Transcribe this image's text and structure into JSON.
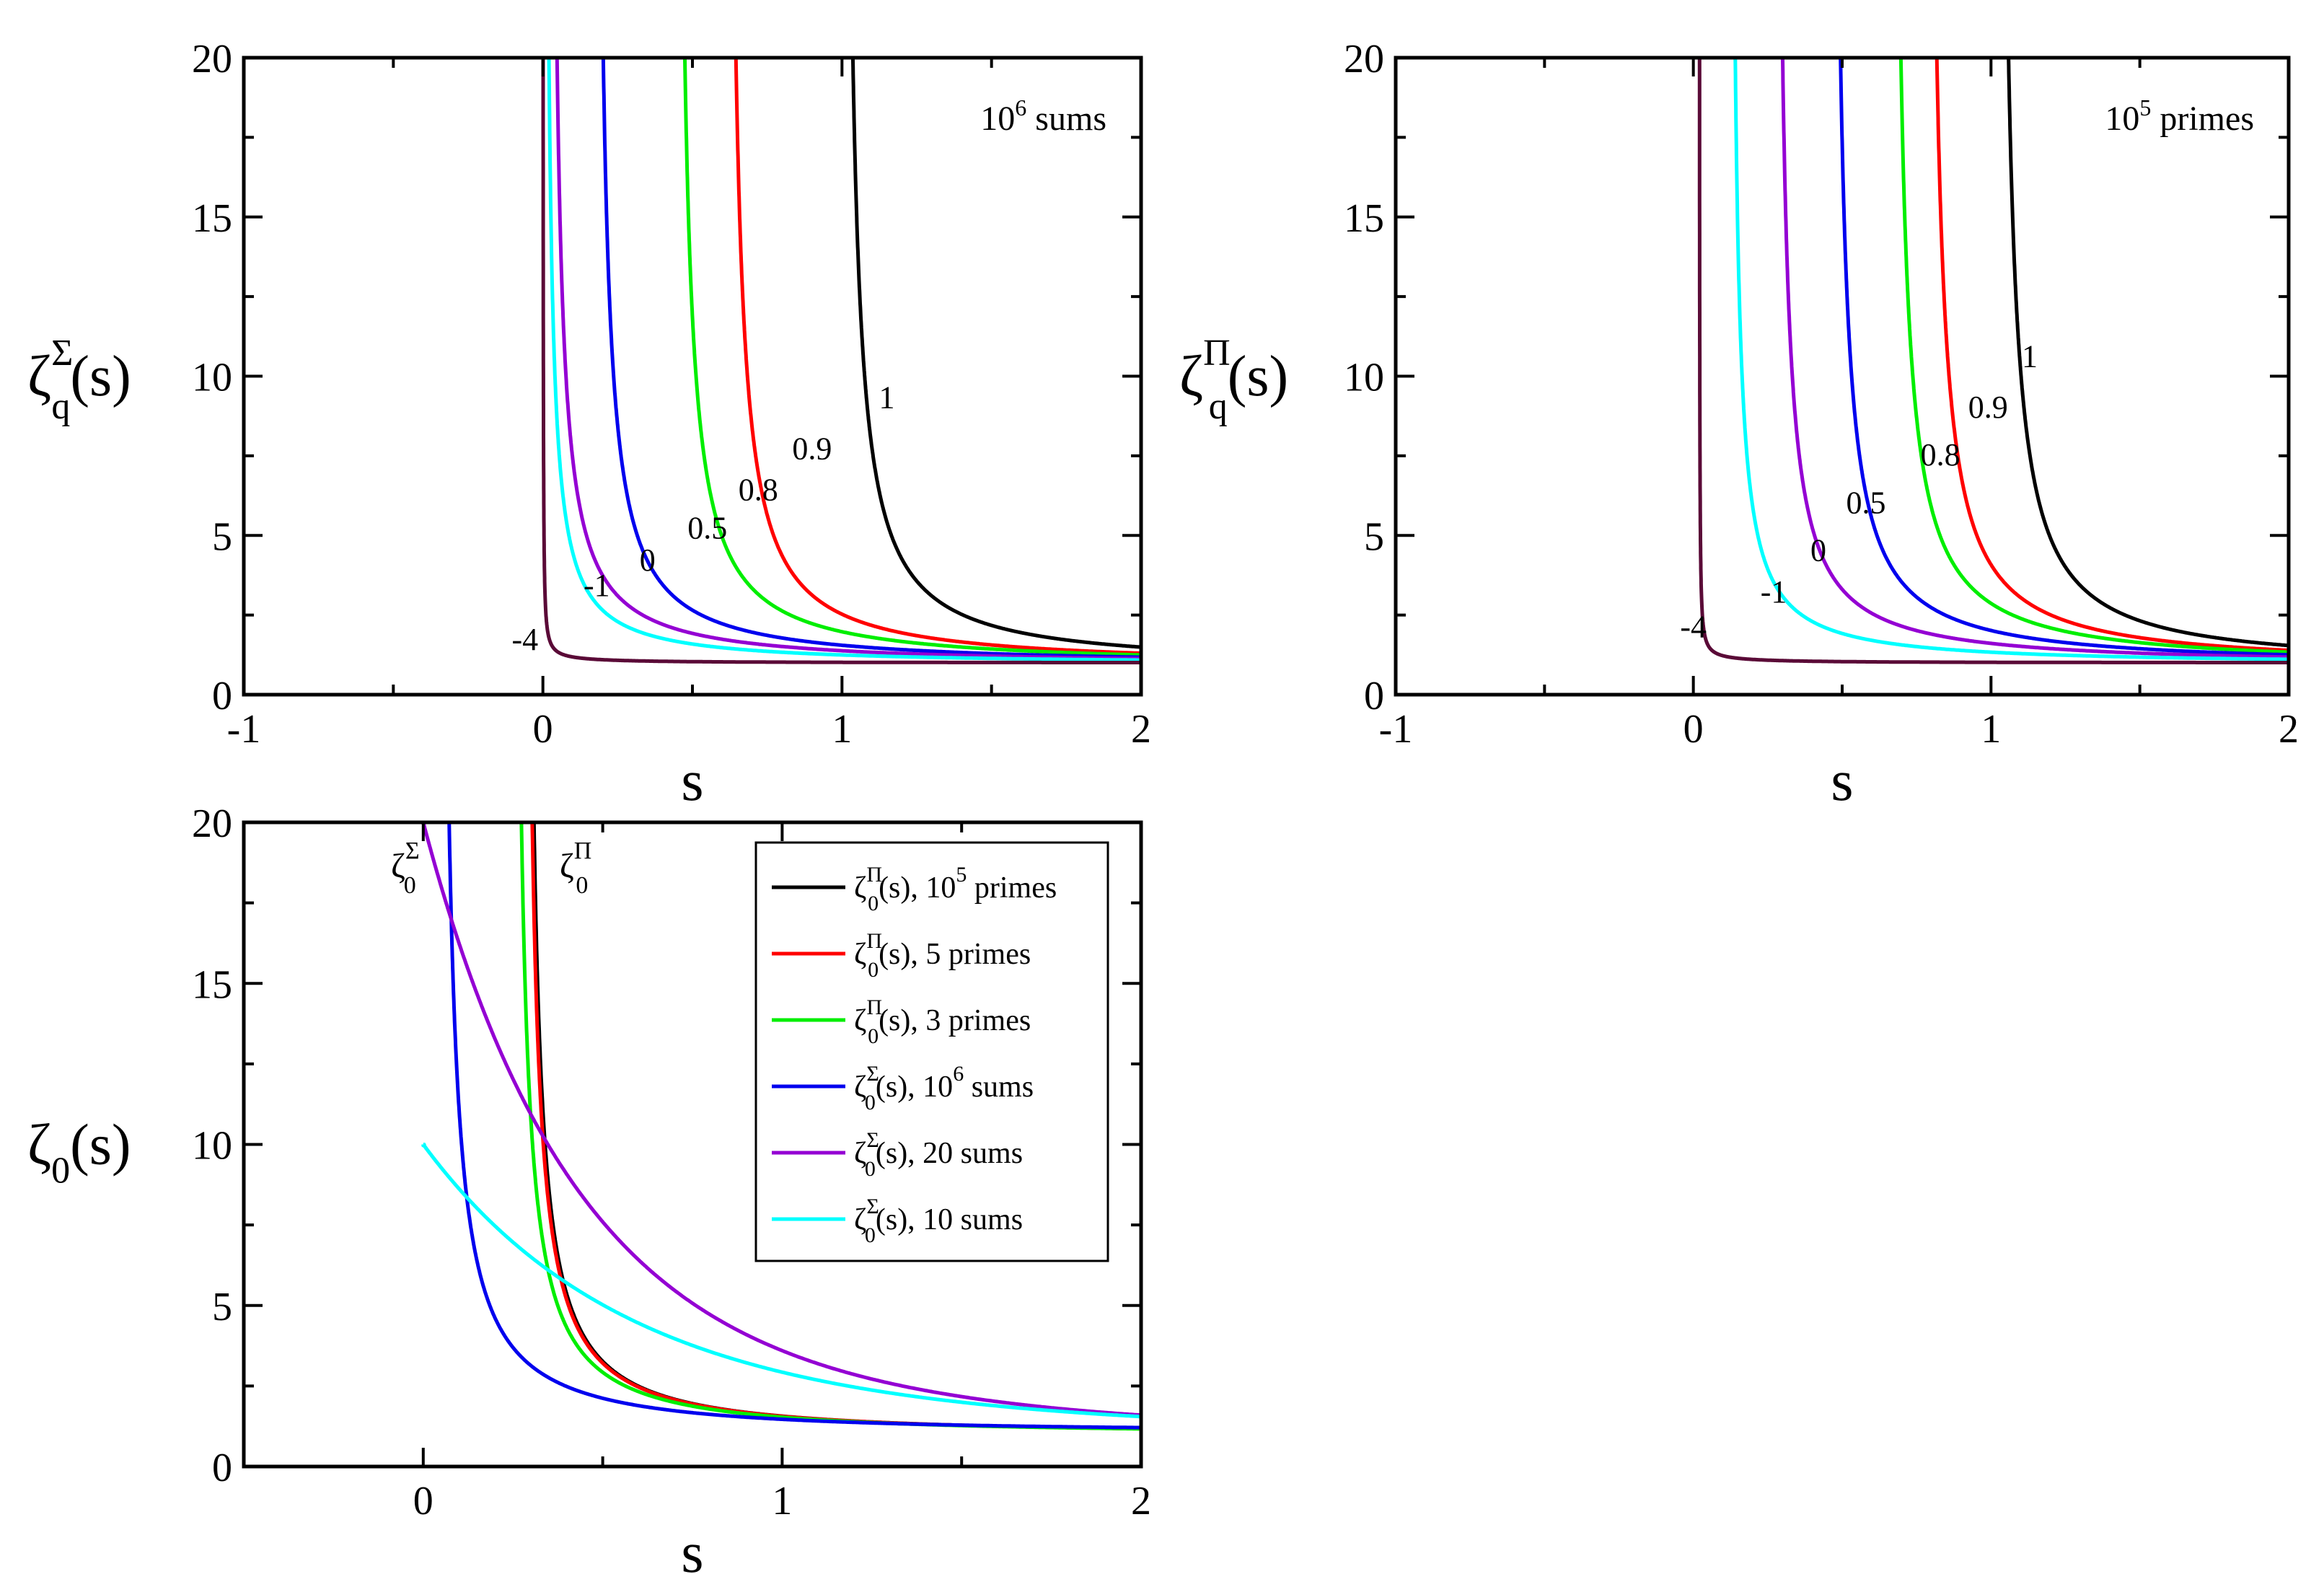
{
  "chart_data": [
    {
      "id": "p1",
      "type": "line",
      "title": "",
      "xlabel": "s",
      "ylabel": {
        "base": "ζ",
        "sub": "q",
        "sup": "Σ",
        "arg": "(s)"
      },
      "annotation": {
        "base": "10",
        "sup": "6",
        "rest": " sums"
      },
      "xlim": [
        -1,
        2
      ],
      "ylim": [
        0,
        20
      ],
      "xticks": [
        -1,
        0,
        1,
        2
      ],
      "yticks": [
        0,
        5,
        10,
        15,
        20
      ],
      "xtick_labels": [
        "-1",
        "0",
        "1",
        "2"
      ],
      "ytick_labels": [
        "0",
        "5",
        "10",
        "15",
        "20"
      ],
      "series": [
        {
          "name": "1",
          "q": 1,
          "color": "#000000",
          "pole": 1.0,
          "label_at": [
            1.15,
            9.0
          ]
        },
        {
          "name": "0.9",
          "q": 0.9,
          "color": "#ff0000",
          "pole": 0.61,
          "label_at": [
            0.9,
            7.4
          ]
        },
        {
          "name": "0.8",
          "q": 0.8,
          "color": "#00ee00",
          "pole": 0.44,
          "label_at": [
            0.72,
            6.1
          ]
        },
        {
          "name": "0.5",
          "q": 0.5,
          "color": "#0000ee",
          "pole": 0.17,
          "label_at": [
            0.55,
            4.9
          ]
        },
        {
          "name": "0",
          "q": 0,
          "color": "#9400d3",
          "pole": 0.02,
          "label_at": [
            0.35,
            3.9
          ]
        },
        {
          "name": "-1",
          "q": -1,
          "color": "#00ffff",
          "pole": 0.002,
          "label_at": [
            0.18,
            3.1
          ]
        },
        {
          "name": "-4",
          "q": -4,
          "color": "#5a0a37",
          "pole": 0.0,
          "label_at": [
            -0.06,
            1.4
          ]
        }
      ]
    },
    {
      "id": "p2",
      "type": "line",
      "title": "",
      "xlabel": "s",
      "ylabel": {
        "base": "ζ",
        "sub": "q",
        "sup": "Π",
        "arg": "(s)"
      },
      "annotation": {
        "base": "10",
        "sup": "5",
        "rest": " primes"
      },
      "xlim": [
        -1,
        2
      ],
      "ylim": [
        0,
        20
      ],
      "xticks": [
        -1,
        0,
        1,
        2
      ],
      "yticks": [
        0,
        5,
        10,
        15,
        20
      ],
      "xtick_labels": [
        "-1",
        "0",
        "1",
        "2"
      ],
      "ytick_labels": [
        "0",
        "5",
        "10",
        "15",
        "20"
      ],
      "series": [
        {
          "name": "1",
          "q": 1,
          "color": "#000000",
          "pole": 1.02,
          "label_at": [
            1.13,
            10.3
          ]
        },
        {
          "name": "0.9",
          "q": 0.9,
          "color": "#ff0000",
          "pole": 0.78,
          "label_at": [
            0.99,
            8.7
          ]
        },
        {
          "name": "0.8",
          "q": 0.8,
          "color": "#00ee00",
          "pole": 0.66,
          "label_at": [
            0.83,
            7.2
          ]
        },
        {
          "name": "0.5",
          "q": 0.5,
          "color": "#0000ee",
          "pole": 0.46,
          "label_at": [
            0.58,
            5.7
          ]
        },
        {
          "name": "0",
          "q": 0,
          "color": "#9400d3",
          "pole": 0.27,
          "label_at": [
            0.42,
            4.2
          ]
        },
        {
          "name": "-1",
          "q": -1,
          "color": "#00ffff",
          "pole": 0.12,
          "label_at": [
            0.27,
            2.9
          ]
        },
        {
          "name": "-4",
          "q": -4,
          "color": "#5a0a37",
          "pole": 0.02,
          "label_at": [
            0.0,
            1.8
          ]
        }
      ]
    },
    {
      "id": "p3",
      "type": "line",
      "title": "",
      "xlabel": "s",
      "ylabel": {
        "base": "ζ",
        "sub": "0",
        "sup": "",
        "arg": "(s)"
      },
      "xlim": [
        -0.5,
        2
      ],
      "ylim": [
        0,
        20
      ],
      "xticks": [
        0,
        1,
        2
      ],
      "yticks": [
        0,
        5,
        10,
        15,
        20
      ],
      "xtick_labels": [
        "0",
        "1",
        "2"
      ],
      "ytick_labels": [
        "0",
        "5",
        "10",
        "15",
        "20"
      ],
      "inline_labels": [
        {
          "base": "ζ",
          "sub": "0",
          "sup": "Σ",
          "at": [
            -0.09,
            18.3
          ]
        },
        {
          "base": "ζ",
          "sub": "0",
          "sup": "Π",
          "at": [
            0.38,
            18.3
          ]
        }
      ],
      "legend_position": "top-right",
      "series": [
        {
          "name": "ζ0Π(s), 10^5 primes",
          "legend": {
            "sup": "Π",
            "rest": "(s), 10",
            "sup2": "5",
            "tail": " primes"
          },
          "color": "#000000",
          "kind": "pi",
          "pole": 0.28,
          "start": 0.255
        },
        {
          "name": "ζ0Π(s), 5 primes",
          "legend": {
            "sup": "Π",
            "rest": "(s),   5 primes",
            "sup2": "",
            "tail": ""
          },
          "color": "#ff0000",
          "kind": "pi",
          "pole": 0.275,
          "start": 0.255
        },
        {
          "name": "ζ0Π(s), 3 primes",
          "legend": {
            "sup": "Π",
            "rest": "(s),   3 primes",
            "sup2": "",
            "tail": ""
          },
          "color": "#00ee00",
          "kind": "pi",
          "pole": 0.245,
          "start": 0.235
        },
        {
          "name": "ζ0Σ(s), 10^6 sums",
          "legend": {
            "sup": "Σ",
            "rest": "(s), 10",
            "sup2": "6",
            "tail": " sums"
          },
          "color": "#0000ee",
          "kind": "sigma",
          "pole": 0.04,
          "start": 0.05
        },
        {
          "name": "ζ0Σ(s), 20 sums",
          "legend": {
            "sup": "Σ",
            "rest": "(s),   20 sums",
            "sup2": "",
            "tail": ""
          },
          "color": "#9400d3",
          "kind": "sigma",
          "pole": 0.0,
          "start": 0.0
        },
        {
          "name": "ζ0Σ(s), 10 sums",
          "legend": {
            "sup": "Σ",
            "rest": "(s),   10 sums",
            "sup2": "",
            "tail": ""
          },
          "color": "#00ffff",
          "kind": "sum10",
          "pole": -0.5,
          "start": 0.0
        }
      ]
    }
  ]
}
